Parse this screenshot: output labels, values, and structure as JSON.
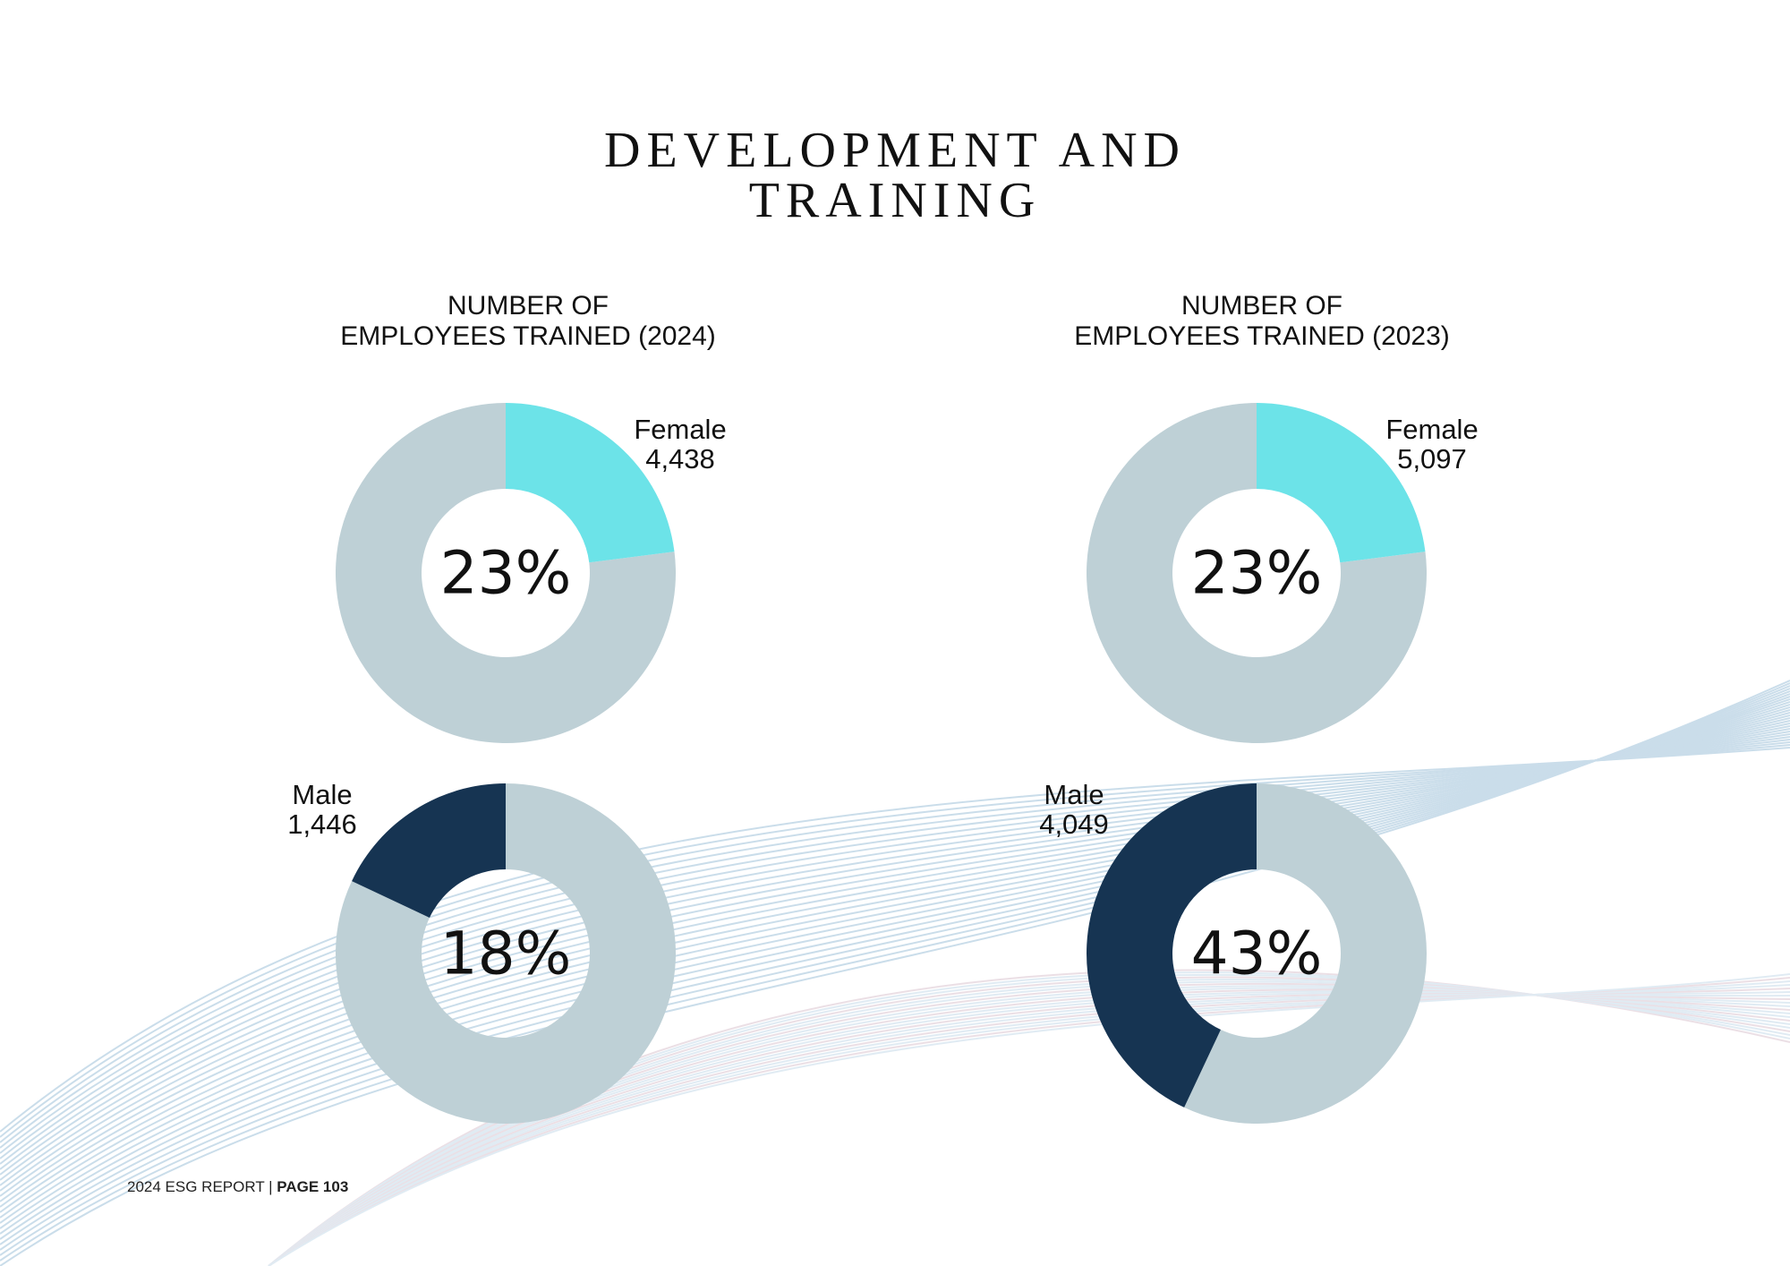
{
  "page": {
    "title_line1": "DEVELOPMENT AND",
    "title_line2": "TRAINING",
    "footer_report": "2024 ESG REPORT | ",
    "footer_page": "PAGE 103"
  },
  "colors": {
    "female": "#6ce3e8",
    "male": "#163452",
    "remainder": "#bed0d6",
    "text": "#111111"
  },
  "chart_data": [
    {
      "type": "pie",
      "title_line1": "NUMBER OF",
      "title_line2": "EMPLOYEES TRAINED (2024)",
      "female": {
        "label": "Female",
        "value": "4,438",
        "percent": 23,
        "percent_text": "23%"
      },
      "male": {
        "label": "Male",
        "value": "1,446",
        "percent": 18,
        "percent_text": "18%"
      }
    },
    {
      "type": "pie",
      "title_line1": "NUMBER OF",
      "title_line2": "EMPLOYEES TRAINED (2023)",
      "female": {
        "label": "Female",
        "value": "5,097",
        "percent": 23,
        "percent_text": "23%"
      },
      "male": {
        "label": "Male",
        "value": "4,049",
        "percent": 43,
        "percent_text": "43%"
      }
    }
  ]
}
